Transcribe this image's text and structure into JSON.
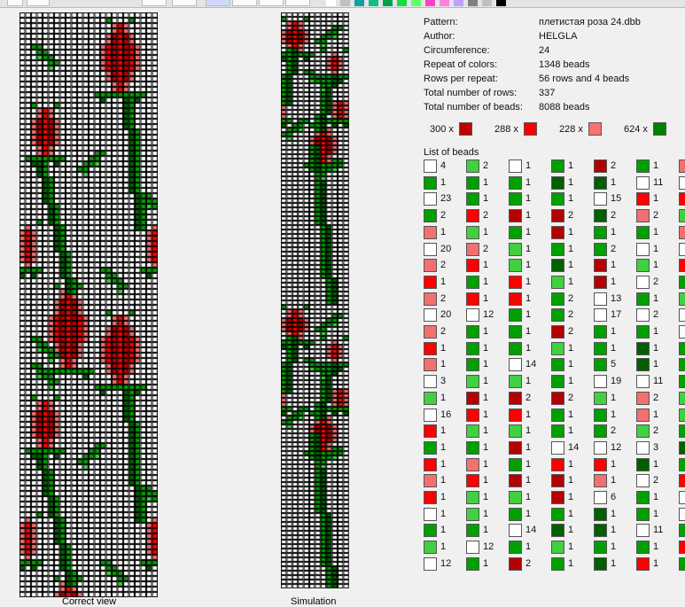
{
  "toolbar": {
    "palette": [
      "#ffffff",
      "#c0c0c0",
      "#10a0a0",
      "#10c080",
      "#00a050",
      "#10e040",
      "#60ff60",
      "#ff40c0",
      "#ff80e0",
      "#c0a0ff",
      "#808080",
      "#c0c0c0",
      "#000000"
    ]
  },
  "info": {
    "labels": [
      "Pattern:",
      "Author:",
      "Circumference:",
      "Repeat of colors:",
      "Rows per repeat:",
      "Total number of rows:",
      "Total number of beads:"
    ],
    "values": [
      "плетистая роза 24.dbb",
      "HELGLA",
      "24",
      "1348 beads",
      "56 rows and 4 beads",
      "337",
      "8088 beads"
    ]
  },
  "totals": [
    {
      "count": "300 x",
      "color": "#c00000"
    },
    {
      "count": "288 x",
      "color": "#ff0000"
    },
    {
      "count": "228 x",
      "color": "#ff7070"
    },
    {
      "count": "624 x",
      "color": "#008000"
    }
  ],
  "list_title": "List of beads",
  "captions": {
    "left": "Correct view",
    "right": "Simulation"
  },
  "colors": {
    "W": "#ffffff",
    "DR": "#b40000",
    "R": "#ff0000",
    "PK": "#f27070",
    "G": "#00a000",
    "LG": "#40d040",
    "DG": "#006000",
    "MG": "#1f8f1f"
  },
  "bead_columns": [
    [
      [
        "W",
        "4"
      ],
      [
        "G",
        "1"
      ],
      [
        "W",
        "23"
      ],
      [
        "G",
        "2"
      ],
      [
        "PK",
        "1"
      ],
      [
        "W",
        "20"
      ],
      [
        "PK",
        "2"
      ],
      [
        "R",
        "1"
      ],
      [
        "PK",
        "2"
      ],
      [
        "W",
        "20"
      ],
      [
        "PK",
        "2"
      ],
      [
        "R",
        "1"
      ],
      [
        "PK",
        "1"
      ],
      [
        "W",
        "3"
      ],
      [
        "LG",
        "1"
      ],
      [
        "W",
        "16"
      ],
      [
        "R",
        "1"
      ],
      [
        "G",
        "1"
      ],
      [
        "R",
        "1"
      ],
      [
        "PK",
        "1"
      ],
      [
        "R",
        "1"
      ],
      [
        "W",
        "1"
      ],
      [
        "G",
        "1"
      ],
      [
        "LG",
        "1"
      ],
      [
        "W",
        "12"
      ]
    ],
    [
      [
        "LG",
        "2"
      ],
      [
        "G",
        "1"
      ],
      [
        "G",
        "1"
      ],
      [
        "R",
        "2"
      ],
      [
        "LG",
        "1"
      ],
      [
        "PK",
        "2"
      ],
      [
        "R",
        "1"
      ],
      [
        "G",
        "1"
      ],
      [
        "R",
        "1"
      ],
      [
        "W",
        "12"
      ],
      [
        "G",
        "1"
      ],
      [
        "G",
        "1"
      ],
      [
        "G",
        "1"
      ],
      [
        "LG",
        "1"
      ],
      [
        "DR",
        "1"
      ],
      [
        "R",
        "1"
      ],
      [
        "LG",
        "1"
      ],
      [
        "G",
        "1"
      ],
      [
        "PK",
        "1"
      ],
      [
        "R",
        "1"
      ],
      [
        "LG",
        "1"
      ],
      [
        "LG",
        "1"
      ],
      [
        "G",
        "1"
      ],
      [
        "W",
        "12"
      ],
      [
        "G",
        "1"
      ]
    ],
    [
      [
        "W",
        "1"
      ],
      [
        "G",
        "1"
      ],
      [
        "G",
        "1"
      ],
      [
        "DR",
        "1"
      ],
      [
        "G",
        "1"
      ],
      [
        "LG",
        "1"
      ],
      [
        "LG",
        "1"
      ],
      [
        "R",
        "1"
      ],
      [
        "R",
        "1"
      ],
      [
        "G",
        "1"
      ],
      [
        "G",
        "1"
      ],
      [
        "G",
        "1"
      ],
      [
        "W",
        "14"
      ],
      [
        "LG",
        "1"
      ],
      [
        "DR",
        "2"
      ],
      [
        "R",
        "1"
      ],
      [
        "LG",
        "1"
      ],
      [
        "DR",
        "1"
      ],
      [
        "G",
        "1"
      ],
      [
        "DR",
        "1"
      ],
      [
        "LG",
        "1"
      ],
      [
        "G",
        "1"
      ],
      [
        "W",
        "14"
      ],
      [
        "G",
        "1"
      ],
      [
        "DR",
        "2"
      ]
    ],
    [
      [
        "G",
        "1"
      ],
      [
        "DG",
        "1"
      ],
      [
        "G",
        "1"
      ],
      [
        "DR",
        "2"
      ],
      [
        "DR",
        "1"
      ],
      [
        "G",
        "1"
      ],
      [
        "DG",
        "1"
      ],
      [
        "LG",
        "1"
      ],
      [
        "G",
        "2"
      ],
      [
        "G",
        "2"
      ],
      [
        "DR",
        "2"
      ],
      [
        "LG",
        "1"
      ],
      [
        "G",
        "1"
      ],
      [
        "G",
        "1"
      ],
      [
        "DR",
        "2"
      ],
      [
        "G",
        "1"
      ],
      [
        "G",
        "1"
      ],
      [
        "W",
        "14"
      ],
      [
        "R",
        "1"
      ],
      [
        "DR",
        "1"
      ],
      [
        "DR",
        "1"
      ],
      [
        "G",
        "1"
      ],
      [
        "DG",
        "1"
      ],
      [
        "LG",
        "1"
      ],
      [
        "G",
        "1"
      ]
    ],
    [
      [
        "DR",
        "2"
      ],
      [
        "DG",
        "1"
      ],
      [
        "W",
        "15"
      ],
      [
        "DG",
        "2"
      ],
      [
        "G",
        "1"
      ],
      [
        "G",
        "2"
      ],
      [
        "DR",
        "1"
      ],
      [
        "DR",
        "1"
      ],
      [
        "W",
        "13"
      ],
      [
        "W",
        "17"
      ],
      [
        "G",
        "1"
      ],
      [
        "G",
        "1"
      ],
      [
        "G",
        "5"
      ],
      [
        "W",
        "19"
      ],
      [
        "LG",
        "1"
      ],
      [
        "G",
        "1"
      ],
      [
        "G",
        "2"
      ],
      [
        "W",
        "12"
      ],
      [
        "R",
        "1"
      ],
      [
        "PK",
        "1"
      ],
      [
        "W",
        "6"
      ],
      [
        "DG",
        "1"
      ],
      [
        "DG",
        "1"
      ],
      [
        "G",
        "1"
      ],
      [
        "DG",
        "1"
      ]
    ],
    [
      [
        "G",
        "1"
      ],
      [
        "W",
        "11"
      ],
      [
        "R",
        "1"
      ],
      [
        "PK",
        "2"
      ],
      [
        "G",
        "1"
      ],
      [
        "W",
        "1"
      ],
      [
        "LG",
        "1"
      ],
      [
        "W",
        "2"
      ],
      [
        "G",
        "1"
      ],
      [
        "W",
        "2"
      ],
      [
        "G",
        "1"
      ],
      [
        "DG",
        "1"
      ],
      [
        "DG",
        "1"
      ],
      [
        "W",
        "11"
      ],
      [
        "PK",
        "2"
      ],
      [
        "PK",
        "1"
      ],
      [
        "LG",
        "2"
      ],
      [
        "W",
        "3"
      ],
      [
        "DG",
        "1"
      ],
      [
        "W",
        "2"
      ],
      [
        "G",
        "1"
      ],
      [
        "G",
        "1"
      ],
      [
        "W",
        "11"
      ],
      [
        "G",
        "1"
      ],
      [
        "R",
        "1"
      ]
    ]
  ],
  "partial_column": [
    "PK",
    "W",
    "R",
    "LG",
    "PK",
    "W",
    "R",
    "G",
    "LG",
    "W",
    "W",
    "G",
    "G",
    "G",
    "LG",
    "LG",
    "G",
    "DG",
    "G",
    "R",
    "W",
    "W",
    "G",
    "R",
    "G"
  ]
}
